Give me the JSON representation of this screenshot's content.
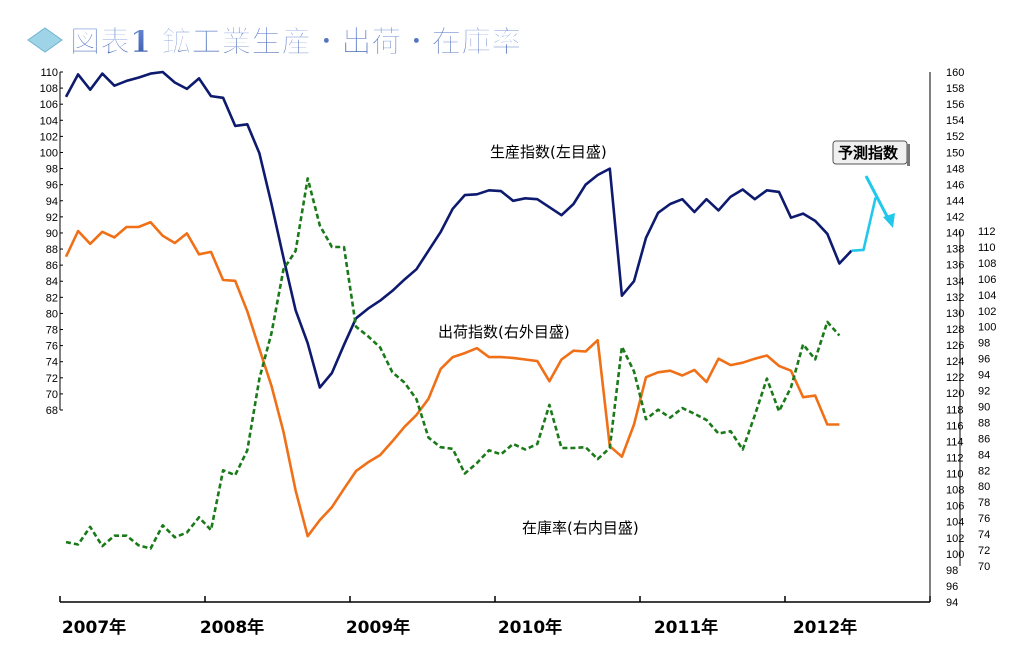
{
  "title": "図表1 鉱工業生産・出荷・在庫率",
  "annotations": {
    "production": "生産指数(左目盛)",
    "shipment": "出荷指数(右外目盛)",
    "inventory": "在庫率(右内目盛)",
    "forecast": "予測指数"
  },
  "chart_data": {
    "type": "line",
    "title": "図表1 鉱工業生産・出荷・在庫率",
    "x_labels": [
      "2007年",
      "2008年",
      "2009年",
      "2010年",
      "2011年",
      "2012年"
    ],
    "x_range_months": [
      "2007-01",
      "2012-12"
    ],
    "axes": {
      "left": {
        "min": 68,
        "max": 110,
        "step": 2
      },
      "right_outer": {
        "min": 94,
        "max": 160,
        "step": 2
      },
      "right_inner": {
        "min": 70,
        "max": 112,
        "step": 2
      }
    },
    "colors": {
      "production": "#0d1a6e",
      "shipment": "#f07018",
      "inventory": "#1a7a1a",
      "forecast": "#22c8ec"
    },
    "series": [
      {
        "key": "production",
        "name": "生産指数(左目盛)",
        "axis": "left",
        "start": "2007-01",
        "values": [
          106.9,
          109.7,
          107.8,
          109.8,
          108.3,
          108.9,
          109.3,
          109.8,
          110.0,
          108.7,
          107.9,
          109.2,
          107.0,
          106.8,
          103.3,
          103.5,
          99.9,
          93.6,
          86.9,
          80.4,
          76.3,
          70.8,
          72.6,
          76.1,
          79.4,
          80.6,
          81.6,
          82.8,
          84.2,
          85.5,
          87.8,
          90.1,
          93.0,
          94.7,
          94.8,
          95.3,
          95.2,
          94.0,
          94.3,
          94.2,
          93.2,
          92.2,
          93.6,
          96.0,
          97.2,
          98.0,
          82.2,
          84.0,
          89.4,
          92.5,
          93.6,
          94.2,
          92.6,
          94.2,
          92.8,
          94.5,
          95.4,
          94.2,
          95.3,
          95.1,
          91.9,
          92.4,
          91.5,
          89.9,
          86.2,
          87.8
        ]
      },
      {
        "key": "forecast",
        "name": "予測指数",
        "axis": "left",
        "start": "2012-06",
        "values": [
          87.8,
          87.9,
          94.4
        ]
      },
      {
        "key": "shipment",
        "name": "出荷指数(右外目盛)",
        "axis": "right_outer",
        "start": "2007-01",
        "values": [
          137.0,
          140.2,
          138.6,
          140.1,
          139.4,
          140.7,
          140.7,
          141.3,
          139.6,
          138.7,
          139.9,
          137.3,
          137.6,
          134.1,
          134.0,
          130.2,
          125.5,
          120.9,
          115.2,
          107.9,
          102.2,
          104.2,
          105.8,
          108.1,
          110.3,
          111.4,
          112.3,
          114.0,
          115.8,
          117.3,
          119.3,
          123.0,
          124.5,
          125.0,
          125.6,
          124.5,
          124.5,
          124.4,
          124.2,
          124.0,
          121.5,
          124.2,
          125.3,
          125.2,
          126.6,
          113.4,
          112.1,
          116.1,
          122.0,
          122.6,
          122.8,
          122.2,
          122.9,
          121.4,
          124.3,
          123.5,
          123.8,
          124.3,
          124.7,
          123.4,
          122.8,
          119.5,
          119.7,
          116.1,
          116.1
        ]
      },
      {
        "key": "inventory",
        "name": "在庫率(右内目盛)",
        "axis": "right_inner",
        "start": "2007-01",
        "values": [
          73.0,
          72.7,
          74.9,
          72.5,
          73.8,
          73.8,
          72.6,
          72.2,
          75.1,
          73.6,
          74.2,
          76.1,
          74.5,
          82.0,
          81.4,
          84.5,
          93.5,
          99.2,
          107.2,
          109.5,
          118.6,
          112.7,
          110.0,
          110.0,
          100.0,
          98.8,
          97.4,
          94.3,
          93.0,
          90.9,
          86.1,
          84.9,
          84.7,
          81.6,
          82.9,
          84.5,
          84.0,
          85.3,
          84.6,
          85.3,
          90.2,
          84.8,
          84.8,
          84.9,
          83.4,
          84.8,
          97.5,
          94.4,
          88.4,
          89.6,
          88.6,
          89.8,
          89.1,
          88.3,
          86.6,
          86.9,
          84.6,
          88.9,
          93.5,
          89.4,
          92.4,
          97.8,
          95.9,
          100.6,
          98.9
        ]
      }
    ]
  }
}
